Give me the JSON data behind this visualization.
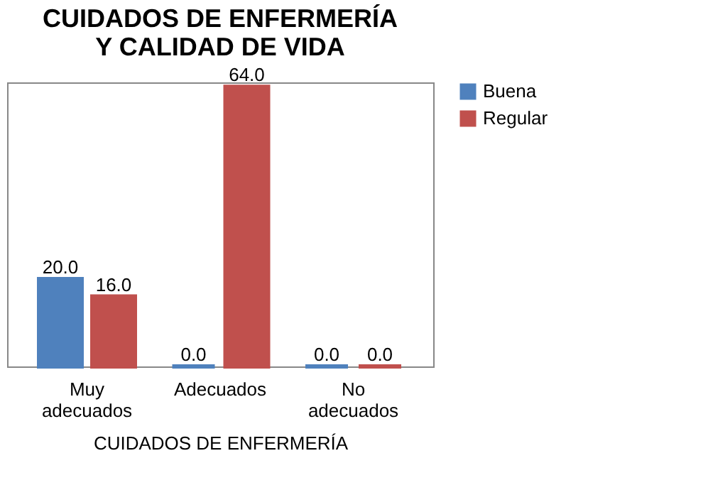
{
  "chart_data": {
    "type": "bar",
    "title": "CUIDADOS DE ENFERMERÍA Y CALIDAD DE VIDA",
    "xlabel": "CUIDADOS DE ENFERMERÍA",
    "categories": [
      "Muy adecuados",
      "Adecuados",
      "No adecuados"
    ],
    "series": [
      {
        "name": "Buena",
        "color": "#4f81bd",
        "values": [
          20,
          0,
          0
        ],
        "value_labels": [
          "20.0",
          "0.0",
          "0.0"
        ]
      },
      {
        "name": "Regular",
        "color": "#c0504d",
        "values": [
          16,
          64,
          0
        ],
        "value_labels": [
          "16.0",
          "64.0",
          "0.0"
        ]
      }
    ],
    "legend": "right",
    "grid": false
  }
}
